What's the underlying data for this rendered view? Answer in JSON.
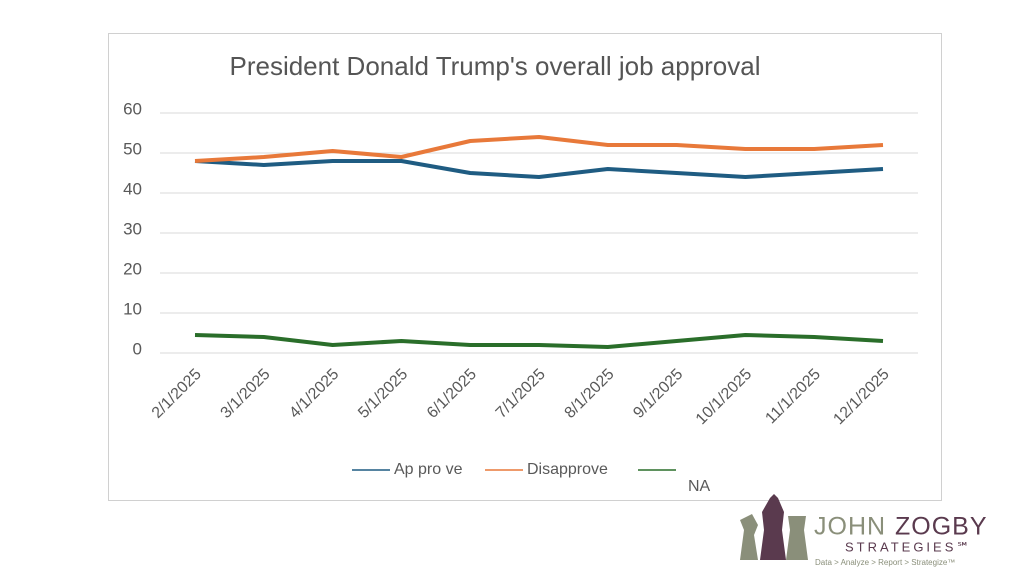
{
  "chart_data": {
    "type": "line",
    "title": "President Donald Trump's overall job approval",
    "categories": [
      "2/1/2025",
      "3/1/2025",
      "4/1/2025",
      "5/1/2025",
      "6/1/2025",
      "7/1/2025",
      "8/1/2025",
      "9/1/2025",
      "10/1/2025",
      "11/1/2025",
      "12/1/2025"
    ],
    "series": [
      {
        "name": "Ap pro ve",
        "color": "#1f5c82",
        "values": [
          48,
          47,
          48,
          48,
          45,
          44,
          46,
          45,
          44,
          45,
          46
        ]
      },
      {
        "name": "Disapprove",
        "color": "#e8793a",
        "values": [
          48,
          49,
          50.5,
          49,
          53,
          54,
          52,
          52,
          51,
          51,
          52
        ]
      },
      {
        "name": "NA",
        "color": "#2a6e2a",
        "values": [
          4.5,
          4,
          2,
          3,
          2,
          2,
          1.5,
          3,
          4.5,
          4,
          3
        ]
      }
    ],
    "ylim": [
      0,
      60
    ],
    "yticks": [
      0,
      10,
      20,
      30,
      40,
      50,
      60
    ],
    "grid": true,
    "legend": "bottom"
  },
  "logo": {
    "first": "JOHN",
    "last": "ZOGBY",
    "sub": "STRATEGIES℠",
    "tagline": "Data > Analyze > Report > Strategize™"
  }
}
